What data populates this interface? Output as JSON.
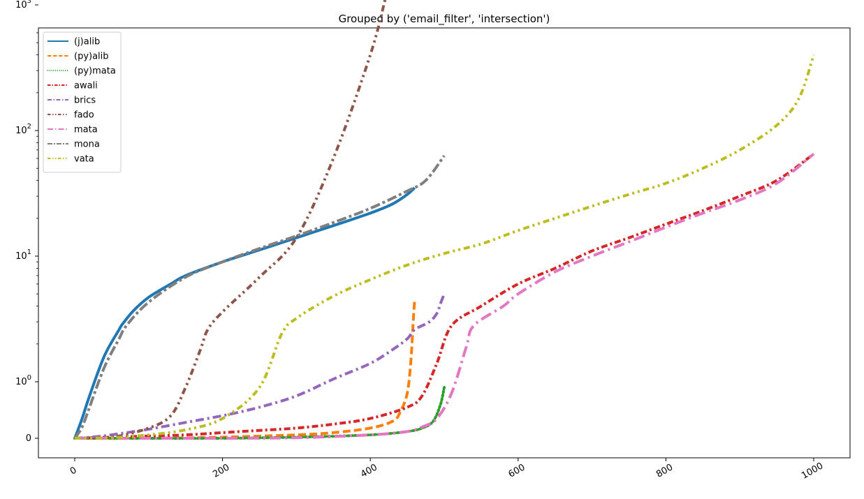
{
  "chart_data": {
    "type": "line",
    "title": "Grouped by ('email_filter', 'intersection')",
    "xlabel": "",
    "ylabel": "",
    "x_ticks": [
      "0",
      "200",
      "400",
      "600",
      "800",
      "1000"
    ],
    "y_scale": "symlog",
    "y_ticks": [
      "0",
      "10^0",
      "10^1",
      "10^2",
      "10^3"
    ],
    "xlim": [
      -50,
      1050
    ],
    "legend_position": "top-left",
    "grid": false,
    "series": [
      {
        "name": "(j)alib",
        "color": "#1f77b4",
        "dash": "solid",
        "points": [
          [
            0,
            0
          ],
          [
            10,
            0.35
          ],
          [
            20,
            0.75
          ],
          [
            40,
            1.6
          ],
          [
            60,
            2.6
          ],
          [
            65,
            2.9
          ],
          [
            80,
            3.7
          ],
          [
            100,
            4.7
          ],
          [
            130,
            6.0
          ],
          [
            150,
            7.0
          ],
          [
            200,
            9.0
          ],
          [
            250,
            11.2
          ],
          [
            300,
            14.0
          ],
          [
            350,
            17.5
          ],
          [
            400,
            22.0
          ],
          [
            430,
            26.0
          ],
          [
            450,
            31.0
          ],
          [
            460,
            35.0
          ]
        ]
      },
      {
        "name": "(py)alib",
        "color": "#ff7f0e",
        "dash": "dashed",
        "points": [
          [
            0,
            0
          ],
          [
            100,
            0.0
          ],
          [
            200,
            0.02
          ],
          [
            300,
            0.06
          ],
          [
            350,
            0.1
          ],
          [
            400,
            0.18
          ],
          [
            430,
            0.3
          ],
          [
            440,
            0.45
          ],
          [
            450,
            0.8
          ],
          [
            455,
            1.5
          ],
          [
            458,
            3.0
          ],
          [
            460,
            4.5
          ]
        ]
      },
      {
        "name": "(py)mata",
        "color": "#2ca02c",
        "dash": "dotted",
        "points": [
          [
            0,
            0
          ],
          [
            100,
            0.0
          ],
          [
            200,
            0.0
          ],
          [
            300,
            0.02
          ],
          [
            400,
            0.06
          ],
          [
            450,
            0.12
          ],
          [
            470,
            0.18
          ],
          [
            485,
            0.3
          ],
          [
            495,
            0.6
          ],
          [
            500,
            0.9
          ]
        ]
      },
      {
        "name": "awali",
        "color": "#d62728",
        "dash": "dashdot-dense",
        "points": [
          [
            0,
            0
          ],
          [
            50,
            0.02
          ],
          [
            100,
            0.04
          ],
          [
            150,
            0.06
          ],
          [
            200,
            0.1
          ],
          [
            250,
            0.14
          ],
          [
            300,
            0.18
          ],
          [
            350,
            0.25
          ],
          [
            400,
            0.35
          ],
          [
            450,
            0.55
          ],
          [
            470,
            0.75
          ],
          [
            490,
            1.4
          ],
          [
            510,
            2.8
          ],
          [
            550,
            4.0
          ],
          [
            600,
            6.0
          ],
          [
            650,
            8.0
          ],
          [
            700,
            11.0
          ],
          [
            750,
            14.0
          ],
          [
            800,
            18.0
          ],
          [
            850,
            23.0
          ],
          [
            900,
            30.0
          ],
          [
            950,
            40.0
          ],
          [
            1000,
            65.0
          ]
        ]
      },
      {
        "name": "brics",
        "color": "#9467bd",
        "dash": "dashdot",
        "points": [
          [
            0,
            0
          ],
          [
            30,
            0.03
          ],
          [
            60,
            0.08
          ],
          [
            100,
            0.16
          ],
          [
            150,
            0.28
          ],
          [
            200,
            0.4
          ],
          [
            250,
            0.55
          ],
          [
            300,
            0.75
          ],
          [
            350,
            1.05
          ],
          [
            400,
            1.4
          ],
          [
            430,
            1.8
          ],
          [
            450,
            2.2
          ],
          [
            460,
            2.6
          ],
          [
            480,
            3.0
          ],
          [
            490,
            3.5
          ],
          [
            495,
            4.2
          ],
          [
            500,
            5.0
          ]
        ]
      },
      {
        "name": "fado",
        "color": "#8c564b",
        "dash": "dashdotdot",
        "points": [
          [
            0,
            0
          ],
          [
            50,
            0.02
          ],
          [
            100,
            0.18
          ],
          [
            130,
            0.4
          ],
          [
            150,
            0.9
          ],
          [
            170,
            1.8
          ],
          [
            180,
            2.6
          ],
          [
            200,
            3.6
          ],
          [
            250,
            6.8
          ],
          [
            300,
            14.0
          ],
          [
            350,
            60.0
          ],
          [
            400,
            400.0
          ],
          [
            420,
            1100.0
          ]
        ]
      },
      {
        "name": "mata",
        "color": "#e377c2",
        "dash": "dashdot-sparse",
        "points": [
          [
            0,
            0
          ],
          [
            100,
            0.0
          ],
          [
            200,
            0.0
          ],
          [
            300,
            0.01
          ],
          [
            400,
            0.06
          ],
          [
            450,
            0.12
          ],
          [
            470,
            0.2
          ],
          [
            490,
            0.35
          ],
          [
            510,
            0.8
          ],
          [
            530,
            1.9
          ],
          [
            540,
            2.8
          ],
          [
            580,
            4.0
          ],
          [
            600,
            5.0
          ],
          [
            650,
            7.5
          ],
          [
            700,
            10.0
          ],
          [
            750,
            13.0
          ],
          [
            800,
            17.0
          ],
          [
            850,
            22.0
          ],
          [
            900,
            28.0
          ],
          [
            950,
            38.0
          ],
          [
            1000,
            65.0
          ]
        ]
      },
      {
        "name": "mona",
        "color": "#7f7f7f",
        "dash": "dashdot-long",
        "points": [
          [
            0,
            0
          ],
          [
            10,
            0.2
          ],
          [
            20,
            0.55
          ],
          [
            40,
            1.3
          ],
          [
            60,
            2.2
          ],
          [
            70,
            2.8
          ],
          [
            100,
            4.3
          ],
          [
            150,
            6.8
          ],
          [
            200,
            9.0
          ],
          [
            250,
            11.5
          ],
          [
            300,
            14.5
          ],
          [
            350,
            18.5
          ],
          [
            400,
            24.0
          ],
          [
            450,
            33.0
          ],
          [
            475,
            40.0
          ],
          [
            500,
            63.0
          ]
        ]
      },
      {
        "name": "vata",
        "color": "#bcbd22",
        "dash": "dashdotdot",
        "points": [
          [
            0,
            0
          ],
          [
            50,
            0.01
          ],
          [
            100,
            0.06
          ],
          [
            150,
            0.15
          ],
          [
            200,
            0.35
          ],
          [
            250,
            0.9
          ],
          [
            280,
            2.4
          ],
          [
            300,
            3.2
          ],
          [
            350,
            4.8
          ],
          [
            400,
            6.5
          ],
          [
            450,
            8.5
          ],
          [
            500,
            10.5
          ],
          [
            550,
            12.5
          ],
          [
            600,
            16.0
          ],
          [
            650,
            20.0
          ],
          [
            700,
            25.0
          ],
          [
            750,
            31.0
          ],
          [
            800,
            38.0
          ],
          [
            850,
            50.0
          ],
          [
            900,
            70.0
          ],
          [
            950,
            110.0
          ],
          [
            980,
            180.0
          ],
          [
            1000,
            400.0
          ]
        ]
      }
    ]
  }
}
